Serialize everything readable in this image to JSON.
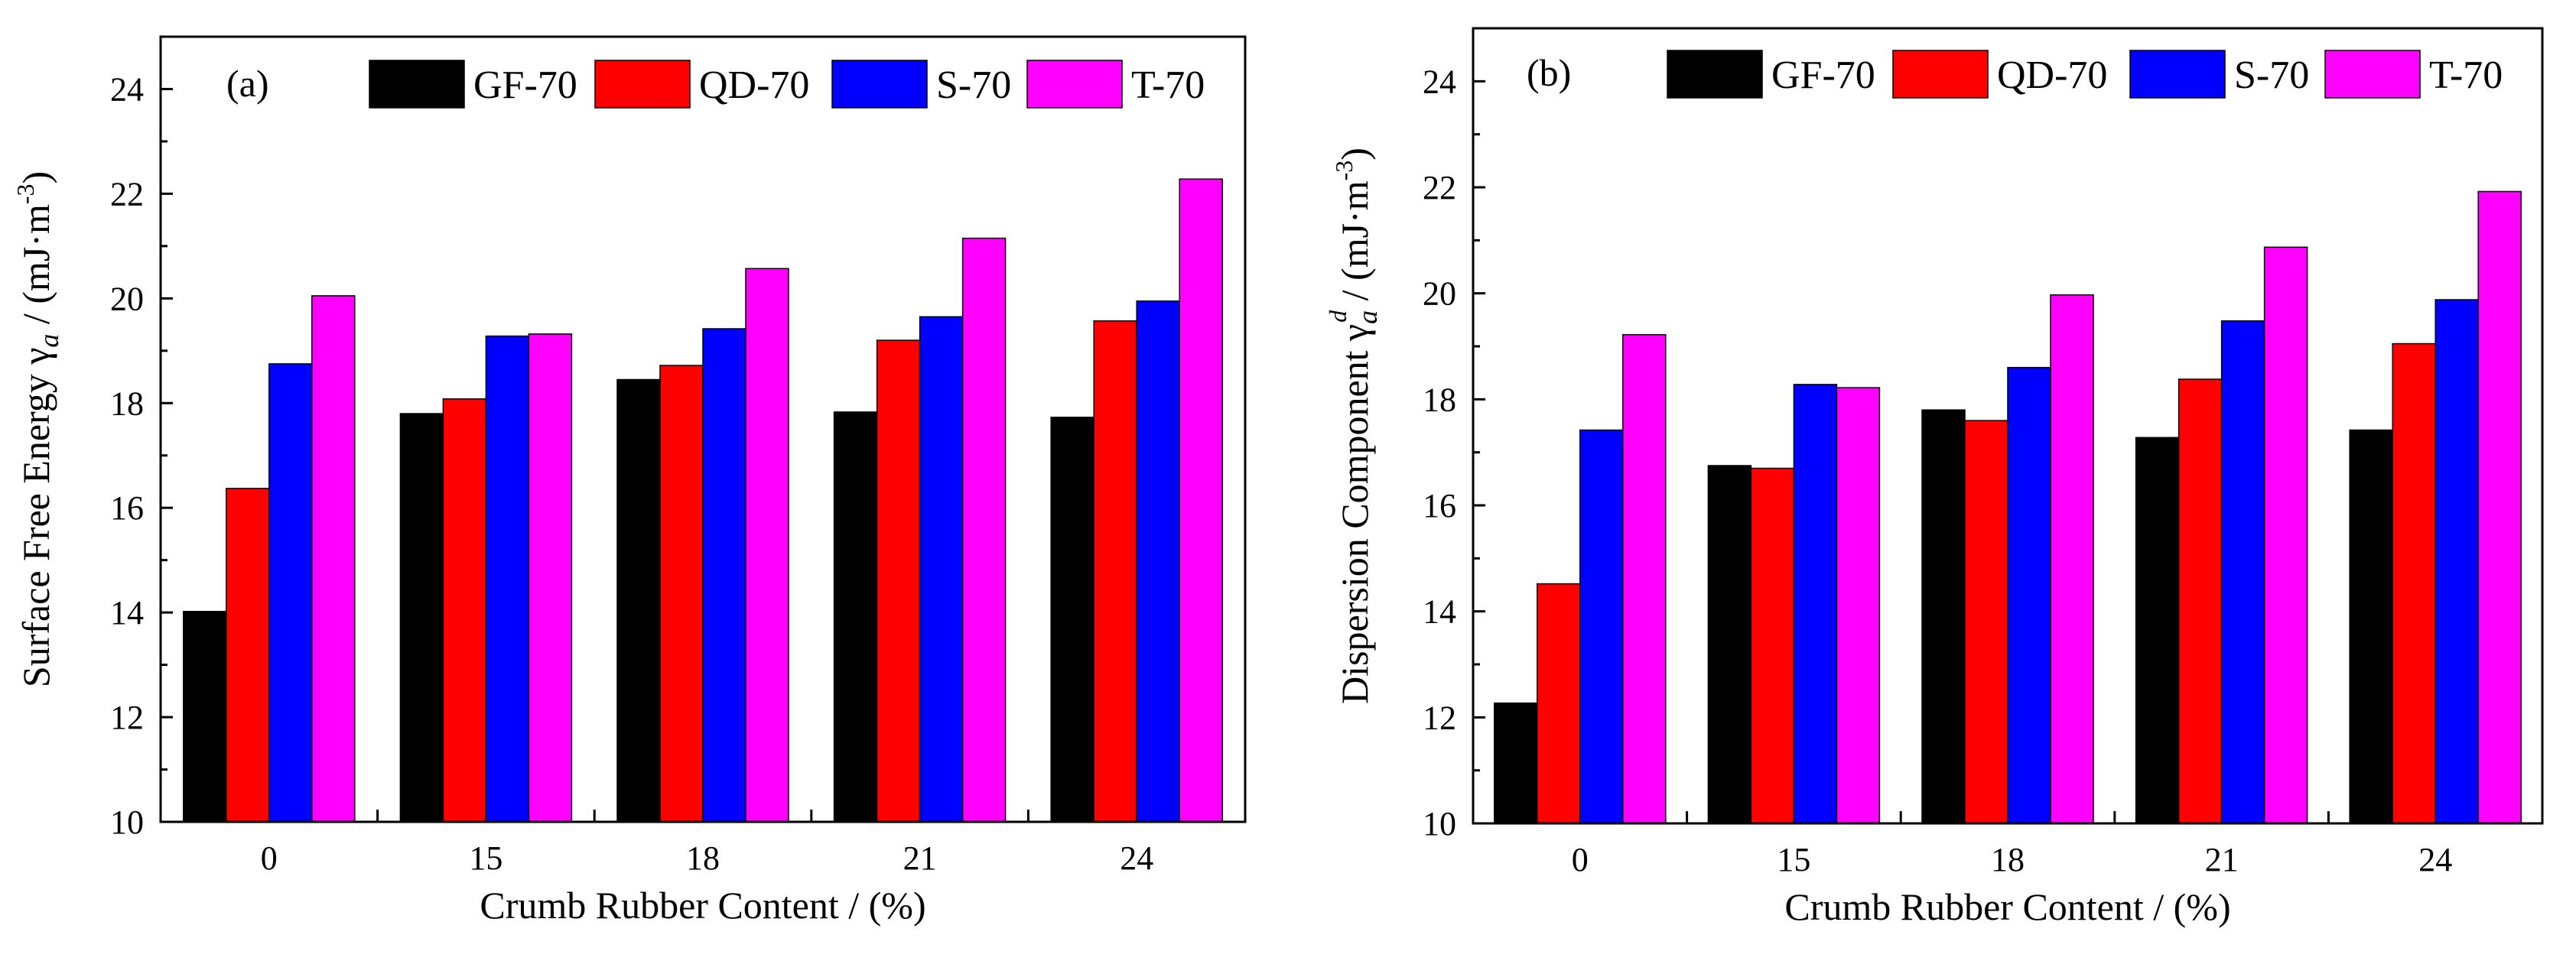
{
  "chart_data": [
    {
      "type": "bar",
      "panel_label": "(a)",
      "categories": [
        "0",
        "15",
        "18",
        "21",
        "24"
      ],
      "series": [
        {
          "name": "GF-70",
          "color": "#000000",
          "values": [
            14.02,
            17.8,
            18.45,
            17.83,
            17.73
          ]
        },
        {
          "name": "QD-70",
          "color": "#ff0000",
          "values": [
            16.37,
            18.08,
            18.72,
            19.2,
            19.57
          ]
        },
        {
          "name": "S-70",
          "color": "#0000ff",
          "values": [
            18.75,
            19.28,
            19.42,
            19.65,
            19.95
          ]
        },
        {
          "name": "T-70",
          "color": "#ff00ff",
          "values": [
            20.05,
            19.32,
            20.57,
            21.15,
            22.28
          ]
        }
      ],
      "xlabel": "Crumb Rubber Content / (%)",
      "ylabel": {
        "main": "Surface Free Energy γ",
        "sub": "a",
        "unit": "/ (mJ·m",
        "exp": "-3",
        "close": ")"
      },
      "ylim": [
        10,
        25
      ],
      "yticks": [
        "10",
        "12",
        "14",
        "16",
        "18",
        "20",
        "22",
        "24"
      ],
      "legend_position": "top"
    },
    {
      "type": "bar",
      "panel_label": "(b)",
      "categories": [
        "0",
        "15",
        "18",
        "21",
        "24"
      ],
      "series": [
        {
          "name": "GF-70",
          "color": "#000000",
          "values": [
            12.27,
            16.75,
            17.8,
            17.28,
            17.42
          ]
        },
        {
          "name": "QD-70",
          "color": "#ff0000",
          "values": [
            14.52,
            16.7,
            17.6,
            18.38,
            19.05
          ]
        },
        {
          "name": "S-70",
          "color": "#0000ff",
          "values": [
            17.42,
            18.28,
            18.6,
            19.48,
            19.88
          ]
        },
        {
          "name": "T-70",
          "color": "#ff00ff",
          "values": [
            19.22,
            18.22,
            19.97,
            20.87,
            21.92
          ]
        }
      ],
      "xlabel": "Crumb Rubber Content / (%)",
      "ylabel": {
        "main": "Dispersion Component γ",
        "sub": "a",
        "sup": "d",
        "unit": "/ (mJ·m",
        "exp": "-3",
        "close": ")"
      },
      "ylim": [
        10,
        25
      ],
      "yticks": [
        "10",
        "12",
        "14",
        "16",
        "18",
        "20",
        "22",
        "24"
      ],
      "legend_position": "top"
    }
  ]
}
